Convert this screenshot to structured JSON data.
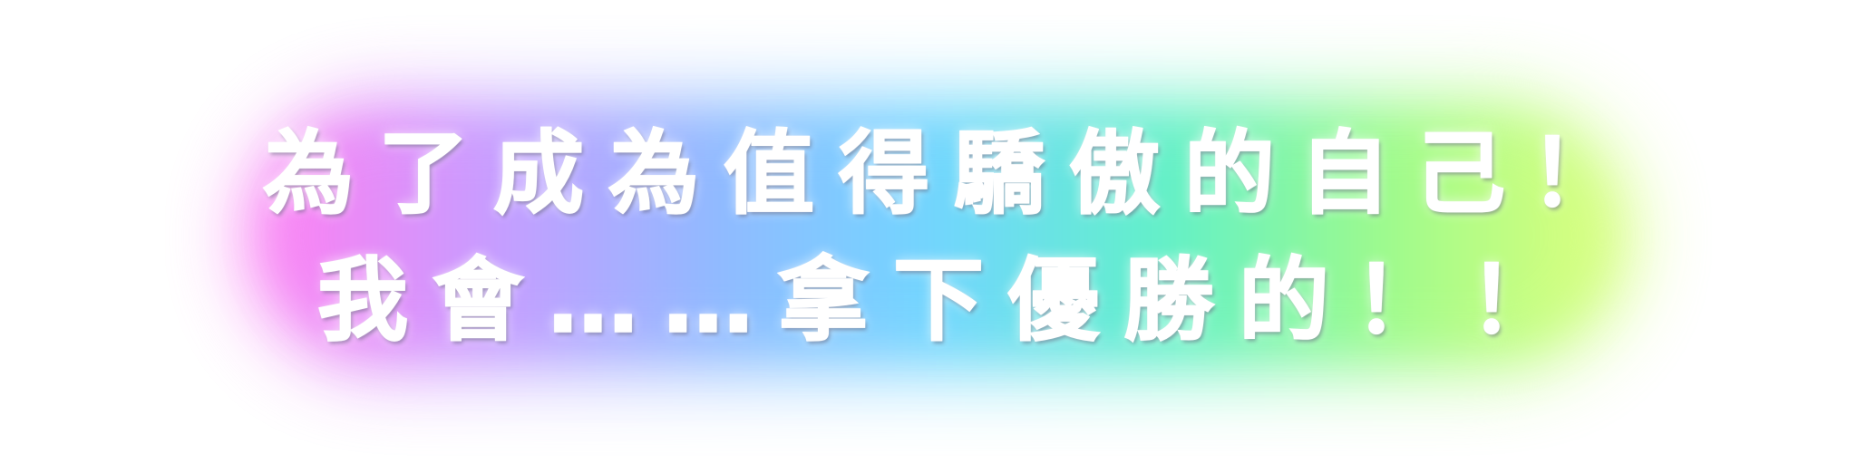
{
  "caption": {
    "line_1": "為了成為值得驕傲的自己！",
    "line_2": "我會……拿下優勝的！！"
  },
  "colors": {
    "background": "#ffffff",
    "text": "#ffffff",
    "glow_gradient": [
      "#ff7df2",
      "#c79bff",
      "#8fb9ff",
      "#6fd6ff",
      "#5ff0c8",
      "#9dfb8a",
      "#dcff7a"
    ]
  }
}
